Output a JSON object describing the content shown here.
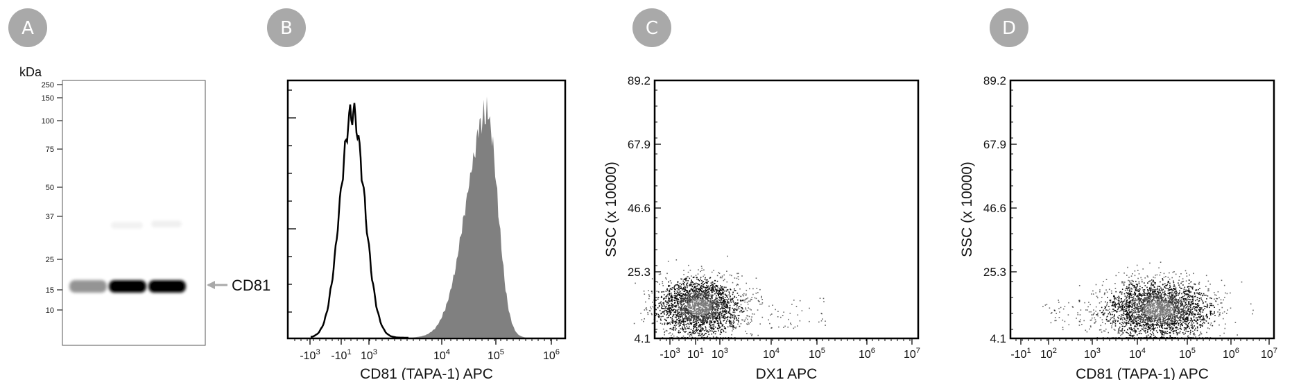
{
  "panels": [
    {
      "badge": "A"
    },
    {
      "badge": "B"
    },
    {
      "badge": "C"
    },
    {
      "badge": "D"
    }
  ],
  "colors": {
    "badge": "#a9a9a9",
    "histogram_filled": "#808080",
    "histogram_outline": "#000000",
    "arrow": "#a9a9a9"
  },
  "chart_data": [
    {
      "type": "western-blot",
      "unit_label": "kDa",
      "markers": [
        250,
        150,
        100,
        75,
        50,
        37,
        25,
        15,
        10
      ],
      "lanes": 3,
      "band_label": "CD81",
      "band_kda": 22,
      "band_intensity": [
        0.35,
        1.0,
        1.0
      ]
    },
    {
      "type": "histogram",
      "xlabel": "CD81 (TAPA-1) APC",
      "x_ticks": [
        "-10^3",
        "-10^1",
        "10^3",
        "10^4",
        "10^5",
        "10^6"
      ],
      "series": [
        {
          "style": "outline",
          "peak_at": "~10^1-10^2",
          "relative_height": 0.9
        },
        {
          "style": "filled",
          "peak_at": "~6x10^4",
          "relative_height": 0.9
        }
      ]
    },
    {
      "type": "scatter",
      "xlabel": "DX1 APC",
      "ylabel": "SSC (x 10000)",
      "x_ticks": [
        "-10^3",
        "10^1",
        "10^3",
        "10^4",
        "10^5",
        "10^6",
        "10^7"
      ],
      "y_ticks": [
        "89.2",
        "67.9",
        "46.6",
        "25.3",
        "4.1"
      ],
      "ylim": [
        4.1,
        89.2
      ],
      "population_center": {
        "x": "~10^1-10^2",
        "y": 13
      }
    },
    {
      "type": "scatter",
      "xlabel": "CD81 (TAPA-1) APC",
      "ylabel": "SSC (x 10000)",
      "x_ticks": [
        "-10^1",
        "10^2",
        "10^3",
        "10^4",
        "10^5",
        "10^6",
        "10^7"
      ],
      "y_ticks": [
        "89.2",
        "67.9",
        "46.6",
        "25.3",
        "4.1"
      ],
      "ylim": [
        4.1,
        89.2
      ],
      "population_center": {
        "x": "~5x10^4",
        "y": 13
      }
    }
  ]
}
